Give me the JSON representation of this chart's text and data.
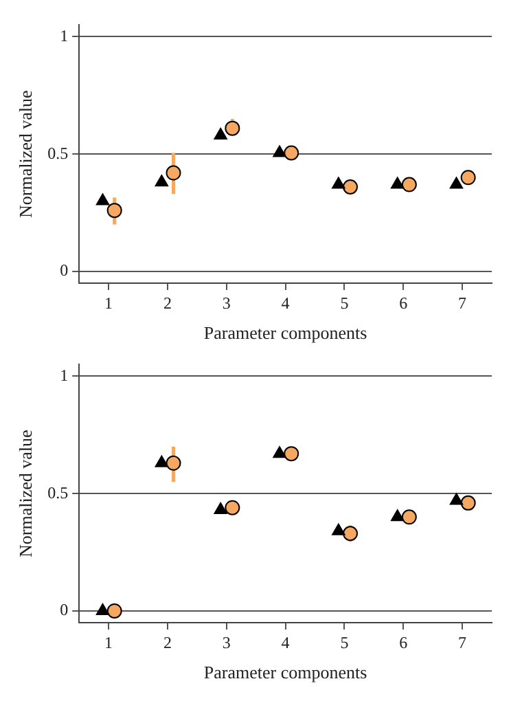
{
  "chart_data": [
    {
      "type": "scatter",
      "xlabel": "Parameter components",
      "ylabel": "Normalized value",
      "xlim": [
        0.5,
        7.5
      ],
      "xticks": [
        1,
        2,
        3,
        4,
        5,
        6,
        7
      ],
      "ylim": [
        -0.05,
        1.05
      ],
      "yticks": [
        0,
        0.5,
        1
      ],
      "grid": "y",
      "legend": false,
      "series": [
        {
          "color": "#000000",
          "marker": "triangle",
          "x": [
            0.9,
            1.9,
            2.9,
            3.9,
            4.9,
            5.9,
            6.9
          ],
          "values": [
            0.3,
            0.38,
            0.58,
            0.505,
            0.37,
            0.37,
            0.37
          ]
        },
        {
          "color": "#f5a862",
          "marker": "circle",
          "x": [
            1.1,
            2.1,
            3.1,
            4.1,
            5.1,
            6.1,
            7.1
          ],
          "values": [
            0.26,
            0.42,
            0.61,
            0.505,
            0.36,
            0.37,
            0.4
          ],
          "errors": [
            [
              0.2,
              0.315
            ],
            [
              0.33,
              0.505
            ],
            [
              0.58,
              0.65
            ],
            null,
            null,
            null,
            null
          ]
        }
      ]
    },
    {
      "type": "scatter",
      "xlabel": "Parameter components",
      "ylabel": "Normalized value",
      "xlim": [
        0.5,
        7.5
      ],
      "xticks": [
        1,
        2,
        3,
        4,
        5,
        6,
        7
      ],
      "ylim": [
        -0.05,
        1.05
      ],
      "yticks": [
        0,
        0.5,
        1
      ],
      "grid": "y",
      "legend": false,
      "series": [
        {
          "color": "#000000",
          "marker": "triangle",
          "x": [
            0.9,
            1.9,
            2.9,
            3.9,
            4.9,
            5.9,
            6.9
          ],
          "values": [
            0.0,
            0.63,
            0.43,
            0.67,
            0.34,
            0.4,
            0.47
          ]
        },
        {
          "color": "#f5a862",
          "marker": "circle",
          "x": [
            1.1,
            2.1,
            3.1,
            4.1,
            5.1,
            6.1,
            7.1
          ],
          "values": [
            0.0,
            0.63,
            0.44,
            0.67,
            0.33,
            0.4,
            0.46
          ],
          "errors": [
            null,
            [
              0.55,
              0.7
            ],
            null,
            null,
            [
              0.295,
              0.365
            ],
            null,
            null
          ]
        }
      ]
    }
  ]
}
